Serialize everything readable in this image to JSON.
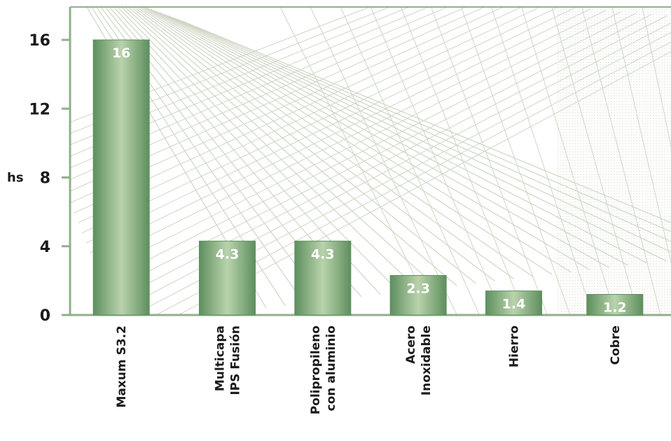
{
  "chart_data": {
    "type": "bar",
    "title": "",
    "xlabel": "",
    "ylabel": "hs",
    "ylim": [
      0,
      18
    ],
    "yticks": [
      0,
      4,
      8,
      12,
      16
    ],
    "categories": [
      [
        "Maxum S3.2"
      ],
      [
        "Multicapa",
        "IPS Fusión"
      ],
      [
        "Polipropileno",
        "con aluminio"
      ],
      [
        "Acero",
        "Inoxidable"
      ],
      [
        "Hierro"
      ],
      [
        "Cobre"
      ]
    ],
    "values": [
      16,
      4.3,
      4.3,
      2.3,
      1.4,
      1.2
    ],
    "data_labels": [
      "16",
      "4.3",
      "4.3",
      "2.3",
      "1.4",
      "1.2"
    ],
    "grid": false,
    "colors": {
      "bar": "#6b9a6b",
      "bar_light": "#c9dcc0",
      "axis": "#8fb08a",
      "background_lines": "#cfd6c4"
    }
  }
}
